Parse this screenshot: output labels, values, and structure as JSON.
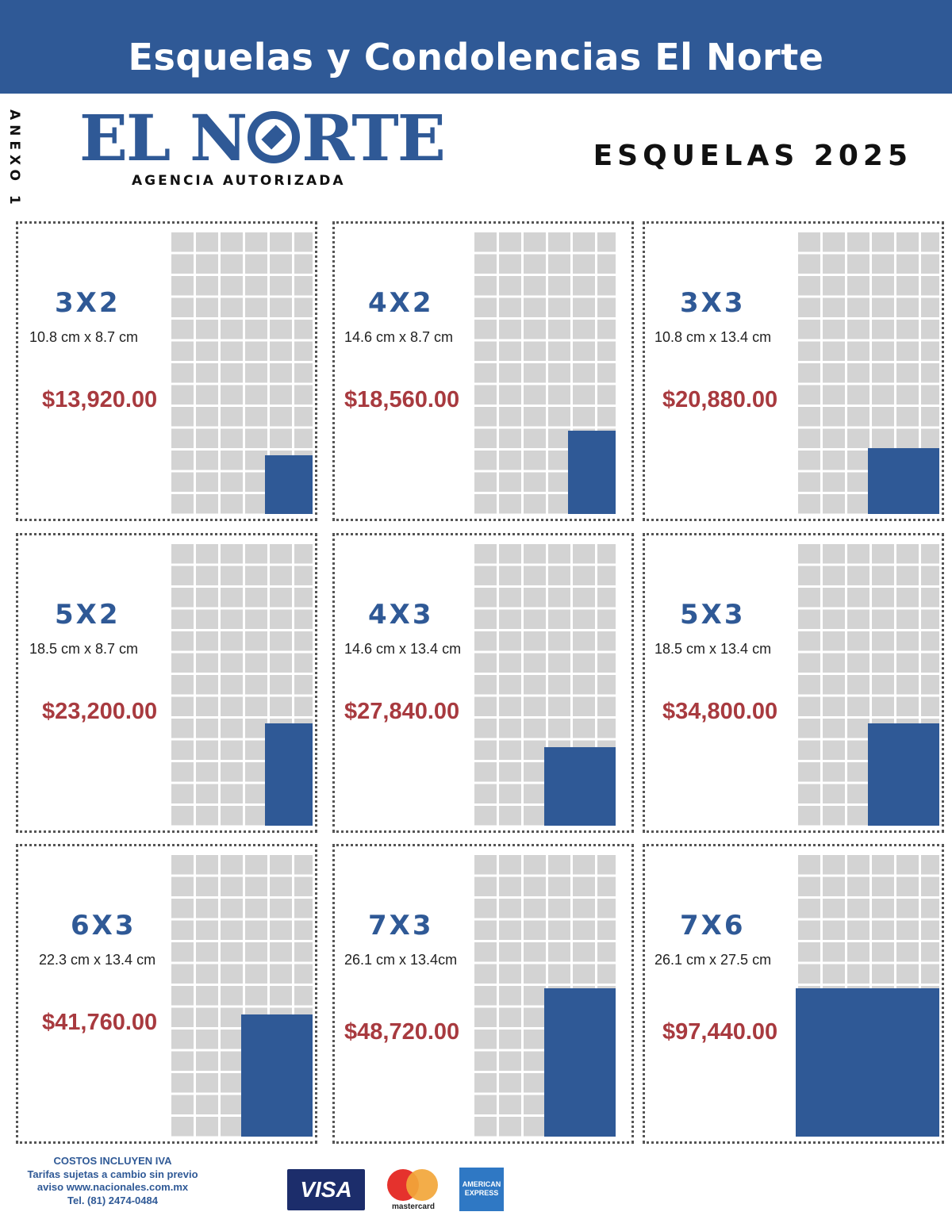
{
  "header": {
    "title": "Esquelas y Condolencias El Norte"
  },
  "side_label": "ANEXO 1",
  "brand": {
    "logo_text": "EL NORTE",
    "logo_left": "EL N",
    "logo_right": "RTE",
    "subtitle": "AGENCIA AUTORIZADA"
  },
  "page_title": "ESQUELAS 2025",
  "colors": {
    "primary": "#2f5996",
    "price": "#a83a3f",
    "grid": "#d3d3d3"
  },
  "grid_columns": 6,
  "grid_rows": 13,
  "packages": [
    {
      "size": "3X2",
      "dims": "10.8 cm x 8.7 cm",
      "price": "$13,920.00",
      "cols": 2,
      "rows": 2.7
    },
    {
      "size": "4X2",
      "dims": "14.6 cm x 8.7 cm",
      "price": "$18,560.00",
      "cols": 2,
      "rows": 3.8
    },
    {
      "size": "3X3",
      "dims": "10.8 cm x 13.4 cm",
      "price": "$20,880.00",
      "cols": 3,
      "rows": 3
    },
    {
      "size": "5X2",
      "dims": "18.5 cm x 8.7 cm",
      "price": "$23,200.00",
      "cols": 2,
      "rows": 4.7
    },
    {
      "size": "4X3",
      "dims": "14.6 cm x 13.4 cm",
      "price": "$27,840.00",
      "cols": 3,
      "rows": 3.6
    },
    {
      "size": "5X3",
      "dims": "18.5 cm x 13.4 cm",
      "price": "$34,800.00",
      "cols": 3,
      "rows": 4.7
    },
    {
      "size": "6X3",
      "dims": "22.3 cm x 13.4 cm",
      "price": "$41,760.00",
      "cols": 3,
      "rows": 5.6
    },
    {
      "size": "7X3",
      "dims": "26.1 cm x 13.4cm",
      "price": "$48,720.00",
      "cols": 3,
      "rows": 6.8
    },
    {
      "size": "7X6",
      "dims": "26.1 cm x 27.5 cm",
      "price": "$97,440.00",
      "cols": 6,
      "rows": 6.8
    }
  ],
  "footer": {
    "line1": "COSTOS INCLUYEN IVA",
    "line2": "Tarifas sujetas a cambio sin previo",
    "line3": "aviso www.nacionales.com.mx",
    "line4": "Tel. (81) 2474-0484"
  },
  "payments": {
    "visa": "VISA",
    "mastercard": "mastercard",
    "amex_line1": "AMERICAN",
    "amex_line2": "EXPRESS"
  }
}
